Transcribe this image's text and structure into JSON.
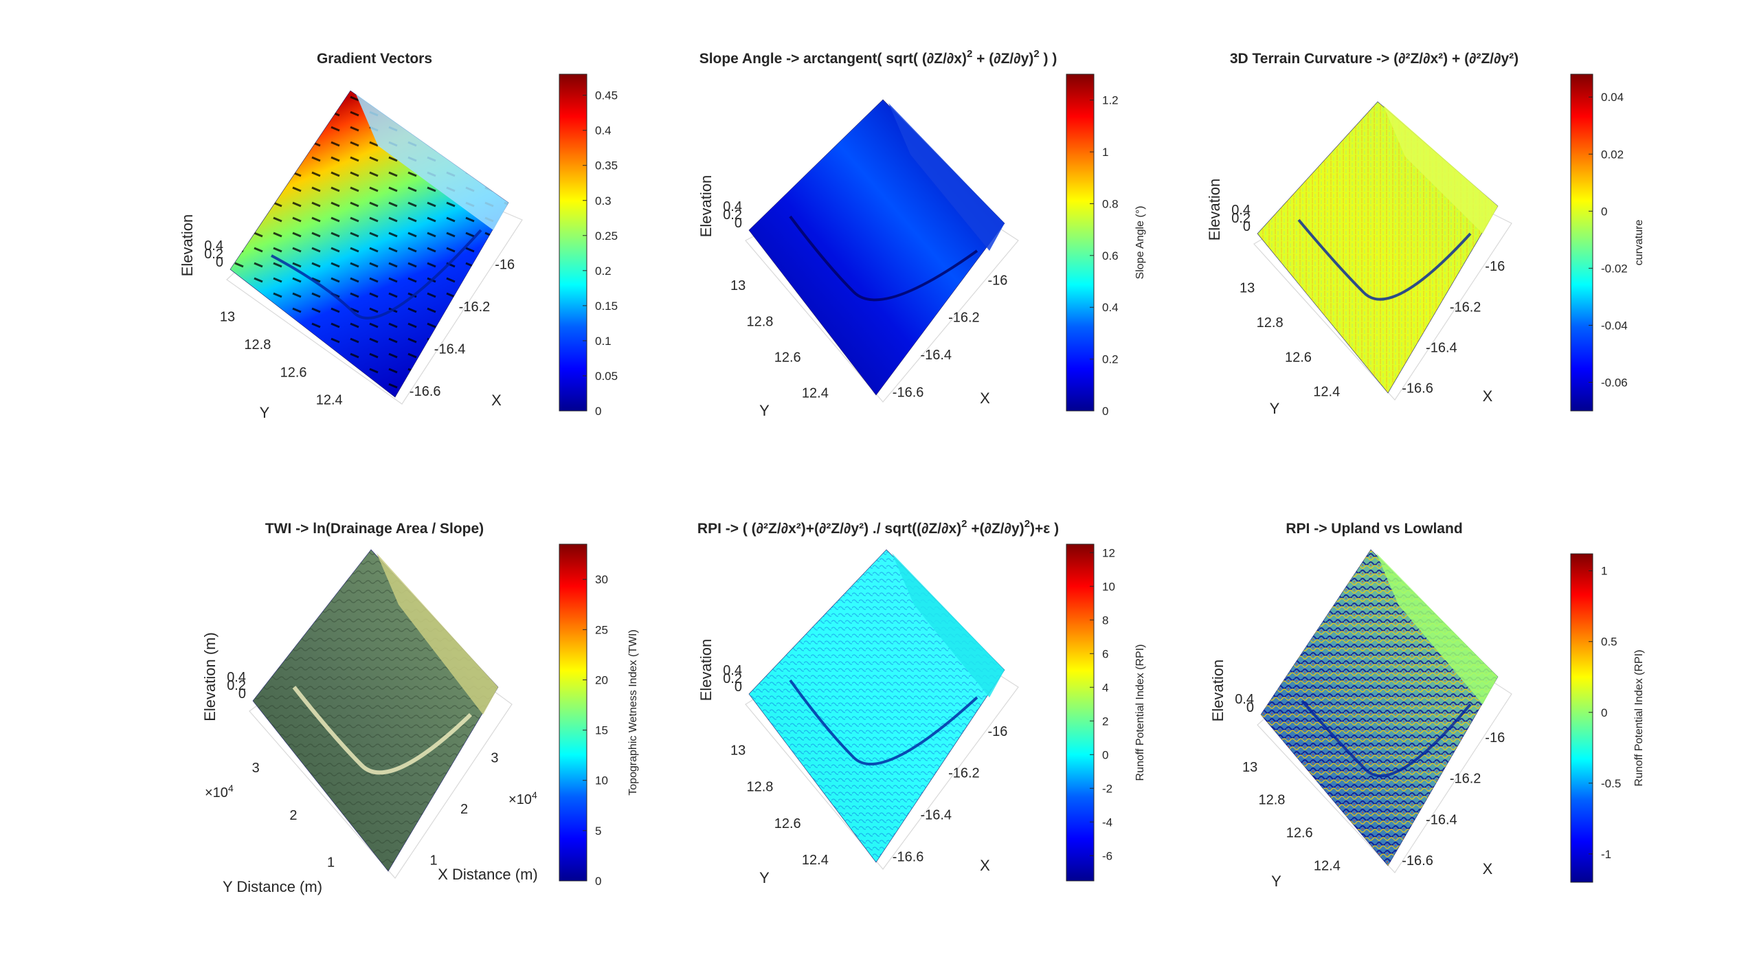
{
  "figure": {
    "background": "#ffffff",
    "colormap_jet": [
      "#00008f",
      "#0000ff",
      "#0080ff",
      "#00ffff",
      "#80ff80",
      "#ffff00",
      "#ff8000",
      "#ff0000",
      "#800000"
    ]
  },
  "chart_data": [
    {
      "type": "surface3d",
      "title": "Gradient Vectors",
      "x_label": "X",
      "y_label": "Y",
      "z_label": "Elevation",
      "x_ticks": [
        "-16",
        "-16.2",
        "-16.4",
        "-16.6"
      ],
      "y_ticks": [
        "13",
        "12.8",
        "12.6",
        "12.4"
      ],
      "z_ticks": [
        "0.4",
        "0.2",
        "0"
      ],
      "colorbar": {
        "label": "",
        "range": [
          0,
          0.48
        ],
        "ticks": [
          "0.45",
          "0.4",
          "0.35",
          "0.3",
          "0.25",
          "0.2",
          "0.15",
          "0.1",
          "0.05",
          "0"
        ]
      },
      "overlay": "gradient-quiver-arrows"
    },
    {
      "type": "surface3d",
      "title_parts": [
        "Slope Angle -> arctangent( sqrt( (∂Z/∂x)",
        "2",
        " + (∂Z/∂y)",
        "2",
        " ) )"
      ],
      "x_label": "X",
      "y_label": "Y",
      "z_label": "Elevation",
      "x_ticks": [
        "-16",
        "-16.2",
        "-16.4",
        "-16.6"
      ],
      "y_ticks": [
        "13",
        "12.8",
        "12.6",
        "12.4"
      ],
      "z_ticks": [
        "0.4",
        "0.2",
        "0"
      ],
      "colorbar": {
        "label": "Slope Angle (°)",
        "range": [
          0,
          1.3
        ],
        "ticks": [
          "1.2",
          "1",
          "0.8",
          "0.6",
          "0.4",
          "0.2",
          "0"
        ]
      }
    },
    {
      "type": "surface3d",
      "title": "3D Terrain Curvature -> (∂²Z/∂x²) + (∂²Z/∂y²)",
      "x_label": "X",
      "y_label": "Y",
      "z_label": "Elevation",
      "x_ticks": [
        "-16",
        "-16.2",
        "-16.4",
        "-16.6"
      ],
      "y_ticks": [
        "13",
        "12.8",
        "12.6",
        "12.4"
      ],
      "z_ticks": [
        "0.4",
        "0.2",
        "0"
      ],
      "colorbar": {
        "label": "curvature",
        "range": [
          -0.07,
          0.048
        ],
        "ticks": [
          "0.04",
          "0.02",
          "0",
          "-0.02",
          "-0.04",
          "-0.06"
        ]
      }
    },
    {
      "type": "surface3d",
      "title": "TWI -> ln(Drainage Area / Slope)",
      "x_label": "X Distance (m)",
      "y_label": "Y Distance (m)",
      "z_label": "Elevation (m)",
      "x_ticks": [
        "3",
        "2",
        "1"
      ],
      "x_exponent": "10",
      "x_exponent_power": "4",
      "y_ticks": [
        "3",
        "2",
        "1"
      ],
      "y_exponent": "10",
      "y_exponent_power": "4",
      "z_ticks": [
        "0.4",
        "0.2",
        "0"
      ],
      "colorbar": {
        "label": "Topographic Wetness Index (TWI)",
        "range": [
          0,
          33.5
        ],
        "ticks": [
          "30",
          "25",
          "20",
          "15",
          "10",
          "5",
          "0"
        ]
      }
    },
    {
      "type": "surface3d",
      "title_parts": [
        "RPI -> ( (∂²Z/∂x²)+(∂²Z/∂y²) ./ sqrt((∂Z/∂x)",
        "2",
        " +(∂Z/∂y)",
        "2",
        ")+ε )"
      ],
      "x_label": "X",
      "y_label": "Y",
      "z_label": "Elevation",
      "x_ticks": [
        "-16",
        "-16.2",
        "-16.4",
        "-16.6"
      ],
      "y_ticks": [
        "13",
        "12.8",
        "12.6",
        "12.4"
      ],
      "z_ticks": [
        "0.4",
        "0.2",
        "0"
      ],
      "colorbar": {
        "label": "Runoff Potential Index (RPI)",
        "range": [
          -7.5,
          12.5
        ],
        "ticks": [
          "12",
          "10",
          "8",
          "6",
          "4",
          "2",
          "0",
          "-2",
          "-4",
          "-6"
        ]
      }
    },
    {
      "type": "surface3d",
      "title": "RPI -> Upland vs Lowland",
      "x_label": "X",
      "y_label": "Y",
      "z_label": "Elevation",
      "x_ticks": [
        "-16",
        "-16.2",
        "-16.4",
        "-16.6"
      ],
      "y_ticks": [
        "13",
        "12.8",
        "12.6",
        "12.4"
      ],
      "z_ticks": [
        "0.4",
        "0"
      ],
      "colorbar": {
        "label": "Runoff Potential Index (RPI)",
        "range": [
          -1.2,
          1.12
        ],
        "ticks": [
          "1",
          "0.5",
          "0",
          "-0.5",
          "-1"
        ]
      }
    }
  ]
}
